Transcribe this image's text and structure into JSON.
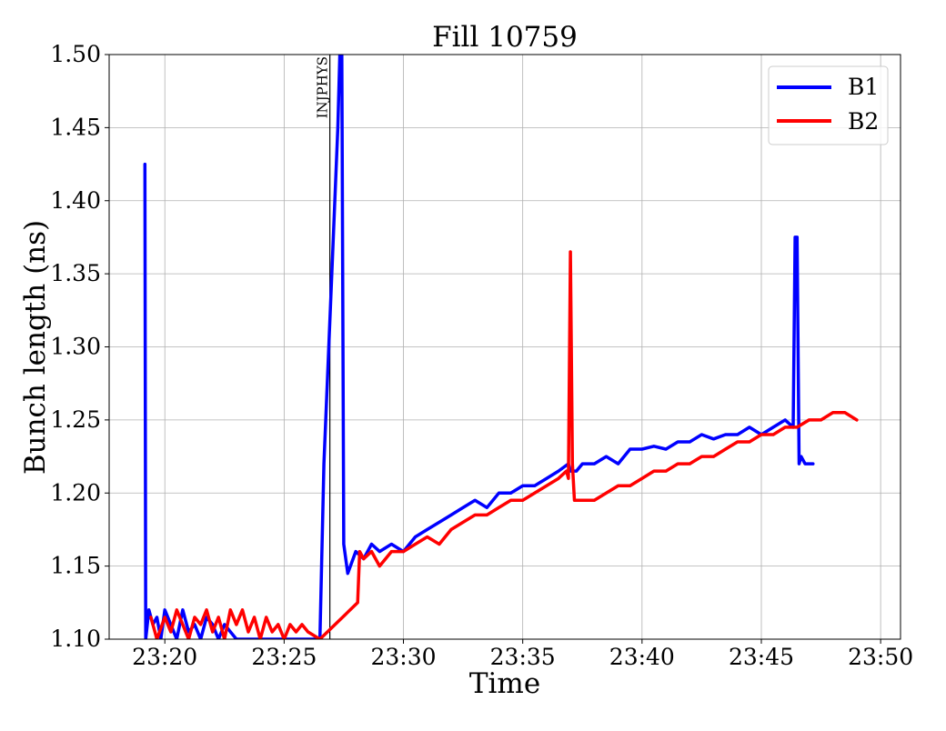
{
  "chart_data": {
    "type": "line",
    "title": "Fill 10759",
    "xlabel": "Time",
    "ylabel": "Bunch length (ns)",
    "xlim": [
      "23:17:40",
      "23:50:50"
    ],
    "ylim": [
      1.1,
      1.5
    ],
    "xticks": [
      "23:20",
      "23:25",
      "23:30",
      "23:35",
      "23:40",
      "23:45",
      "23:50"
    ],
    "yticks": [
      "1.10",
      "1.15",
      "1.20",
      "1.25",
      "1.30",
      "1.35",
      "1.40",
      "1.45",
      "1.50"
    ],
    "grid": true,
    "legend_position": "top-right",
    "annotations": [
      {
        "text": "INJPHYS",
        "x": "23:26:55",
        "type": "vertical-line"
      }
    ],
    "series": [
      {
        "name": "B1",
        "color": "#0000ff",
        "x": [
          "23:19:10",
          "23:19:12",
          "23:19:20",
          "23:19:30",
          "23:19:40",
          "23:19:50",
          "23:20:00",
          "23:20:15",
          "23:20:30",
          "23:20:45",
          "23:21:00",
          "23:21:15",
          "23:21:30",
          "23:21:45",
          "23:22:00",
          "23:22:15",
          "23:22:30",
          "23:23:00",
          "23:23:30",
          "23:24:00",
          "23:24:30",
          "23:25:00",
          "23:25:30",
          "23:26:00",
          "23:26:25",
          "23:26:30",
          "23:26:40",
          "23:27:00",
          "23:27:15",
          "23:27:20",
          "23:27:25",
          "23:27:30",
          "23:27:40",
          "23:28:00",
          "23:28:20",
          "23:28:40",
          "23:29:00",
          "23:29:30",
          "23:30:00",
          "23:30:30",
          "23:31:00",
          "23:31:30",
          "23:32:00",
          "23:32:30",
          "23:33:00",
          "23:33:30",
          "23:34:00",
          "23:34:30",
          "23:35:00",
          "23:35:30",
          "23:36:00",
          "23:36:30",
          "23:36:55",
          "23:37:00",
          "23:37:15",
          "23:37:30",
          "23:38:00",
          "23:38:30",
          "23:39:00",
          "23:39:30",
          "23:40:00",
          "23:40:30",
          "23:41:00",
          "23:41:30",
          "23:42:00",
          "23:42:30",
          "23:43:00",
          "23:43:30",
          "23:44:00",
          "23:44:30",
          "23:45:00",
          "23:45:30",
          "23:46:00",
          "23:46:20",
          "23:46:25",
          "23:46:30",
          "23:46:35",
          "23:46:40",
          "23:46:50",
          "23:47:10"
        ],
        "y": [
          1.425,
          1.1,
          1.12,
          1.11,
          1.115,
          1.1,
          1.12,
          1.11,
          1.1,
          1.12,
          1.105,
          1.11,
          1.1,
          1.115,
          1.11,
          1.1,
          1.11,
          1.1,
          1.1,
          1.1,
          1.1,
          1.1,
          1.1,
          1.1,
          1.1,
          1.1,
          1.22,
          1.35,
          1.45,
          1.5,
          1.5,
          1.165,
          1.145,
          1.16,
          1.155,
          1.165,
          1.16,
          1.165,
          1.16,
          1.17,
          1.175,
          1.18,
          1.185,
          1.19,
          1.195,
          1.19,
          1.2,
          1.2,
          1.205,
          1.205,
          1.21,
          1.215,
          1.22,
          1.215,
          1.215,
          1.22,
          1.22,
          1.225,
          1.22,
          1.23,
          1.23,
          1.232,
          1.23,
          1.235,
          1.235,
          1.24,
          1.237,
          1.24,
          1.24,
          1.245,
          1.24,
          1.245,
          1.25,
          1.245,
          1.375,
          1.375,
          1.22,
          1.225,
          1.22,
          1.22
        ]
      },
      {
        "name": "B2",
        "color": "#ff0000",
        "x": [
          "23:19:25",
          "23:19:40",
          "23:20:00",
          "23:20:15",
          "23:20:30",
          "23:20:45",
          "23:21:00",
          "23:21:15",
          "23:21:30",
          "23:21:45",
          "23:22:00",
          "23:22:15",
          "23:22:30",
          "23:22:45",
          "23:23:00",
          "23:23:15",
          "23:23:30",
          "23:23:45",
          "23:24:00",
          "23:24:15",
          "23:24:30",
          "23:24:45",
          "23:25:00",
          "23:25:15",
          "23:25:30",
          "23:25:45",
          "23:26:00",
          "23:26:30",
          "23:28:05",
          "23:28:10",
          "23:28:20",
          "23:28:40",
          "23:29:00",
          "23:29:30",
          "23:30:00",
          "23:30:30",
          "23:31:00",
          "23:31:30",
          "23:32:00",
          "23:32:30",
          "23:33:00",
          "23:33:30",
          "23:34:00",
          "23:34:30",
          "23:35:00",
          "23:35:30",
          "23:36:00",
          "23:36:30",
          "23:36:50",
          "23:36:55",
          "23:37:00",
          "23:37:05",
          "23:37:10",
          "23:37:30",
          "23:38:00",
          "23:38:30",
          "23:39:00",
          "23:39:30",
          "23:40:00",
          "23:40:30",
          "23:41:00",
          "23:41:30",
          "23:42:00",
          "23:42:30",
          "23:43:00",
          "23:43:30",
          "23:44:00",
          "23:44:30",
          "23:45:00",
          "23:45:30",
          "23:46:00",
          "23:46:30",
          "23:47:00",
          "23:47:30",
          "23:48:00",
          "23:48:30",
          "23:49:00"
        ],
        "y": [
          1.115,
          1.1,
          1.115,
          1.105,
          1.12,
          1.11,
          1.1,
          1.115,
          1.11,
          1.12,
          1.105,
          1.115,
          1.1,
          1.12,
          1.11,
          1.12,
          1.105,
          1.115,
          1.1,
          1.115,
          1.105,
          1.11,
          1.1,
          1.11,
          1.105,
          1.11,
          1.105,
          1.1,
          1.125,
          1.16,
          1.155,
          1.16,
          1.15,
          1.16,
          1.16,
          1.165,
          1.17,
          1.165,
          1.175,
          1.18,
          1.185,
          1.185,
          1.19,
          1.195,
          1.195,
          1.2,
          1.205,
          1.21,
          1.215,
          1.21,
          1.365,
          1.22,
          1.195,
          1.195,
          1.195,
          1.2,
          1.205,
          1.205,
          1.21,
          1.215,
          1.215,
          1.22,
          1.22,
          1.225,
          1.225,
          1.23,
          1.235,
          1.235,
          1.24,
          1.24,
          1.245,
          1.245,
          1.25,
          1.25,
          1.255,
          1.255,
          1.25
        ]
      }
    ]
  }
}
